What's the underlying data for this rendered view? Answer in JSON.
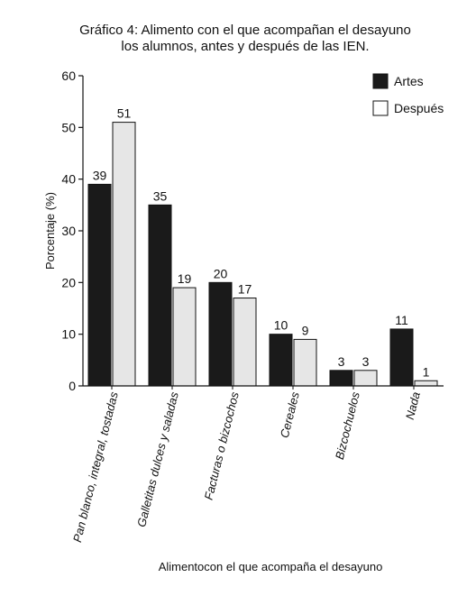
{
  "chart_data": {
    "type": "bar",
    "title": "Gráfico 4: Alimento con el que acompañan el desayuno",
    "subtitle": "los alumnos, antes y después de las IEN.",
    "xlabel": "Alimentocon el que acompaña el desayuno",
    "ylabel": "Porcentaje (%)",
    "ylim": [
      0,
      60
    ],
    "yticks": [
      "0",
      "10",
      "20",
      "30",
      "40",
      "50",
      "60"
    ],
    "categories": [
      "Pan blanco, integral, tostadas",
      "Galletitas dulces y saladas",
      "Facturas o bizcochos",
      "Cereales",
      "Bizcochuelos",
      "Nada"
    ],
    "series": [
      {
        "name": "Artes",
        "color": "#1a1a1a",
        "values": [
          39,
          35,
          20,
          10,
          3,
          11
        ]
      },
      {
        "name": "Después",
        "color": "#e6e6e6",
        "values": [
          51,
          19,
          17,
          9,
          3,
          1
        ]
      }
    ],
    "legend_position": "top-right",
    "grid": false
  }
}
